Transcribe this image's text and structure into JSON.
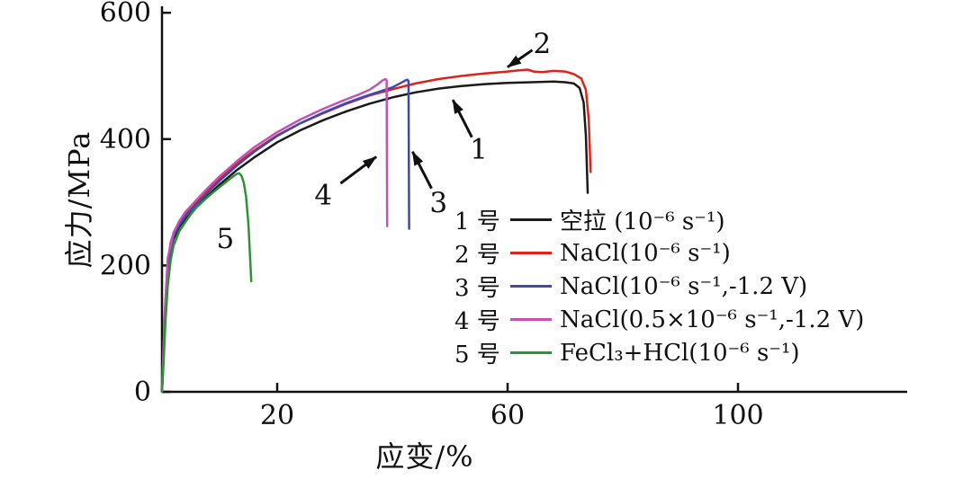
{
  "figure": {
    "background": "#ffffff",
    "axis_color": "#111111"
  },
  "chart_data": {
    "type": "line",
    "title": "",
    "xlabel": "应变/%",
    "ylabel": "应力/MPa",
    "xlim": [
      0,
      129
    ],
    "ylim": [
      0,
      620
    ],
    "xticks": [
      20,
      60,
      100
    ],
    "yticks": [
      0,
      200,
      400,
      600
    ],
    "grid": false,
    "legend_position": "inside-lower-right",
    "series": [
      {
        "id": "1",
        "legend_key": "1 号",
        "name": "空拉 (10⁻⁶ s⁻¹)",
        "color": "#1a1a1a",
        "points": [
          [
            0,
            0
          ],
          [
            0.3,
            60
          ],
          [
            0.6,
            130
          ],
          [
            1,
            198
          ],
          [
            1.5,
            226
          ],
          [
            2,
            242
          ],
          [
            3,
            261
          ],
          [
            4,
            273
          ],
          [
            6,
            293
          ],
          [
            8,
            311
          ],
          [
            10,
            328
          ],
          [
            13,
            351
          ],
          [
            16,
            371
          ],
          [
            20,
            395
          ],
          [
            24,
            414
          ],
          [
            28,
            430
          ],
          [
            32,
            444
          ],
          [
            36,
            456
          ],
          [
            40,
            466
          ],
          [
            44,
            474
          ],
          [
            48,
            480
          ],
          [
            52,
            484
          ],
          [
            56,
            487
          ],
          [
            60,
            489
          ],
          [
            64,
            490
          ],
          [
            68,
            491
          ],
          [
            70,
            490
          ],
          [
            71.5,
            488
          ],
          [
            72.5,
            481
          ],
          [
            73.2,
            458
          ],
          [
            73.6,
            405
          ],
          [
            73.9,
            315
          ]
        ]
      },
      {
        "id": "2",
        "legend_key": "2 号",
        "name": "NaCl(10⁻⁶ s⁻¹)",
        "color": "#e02318",
        "points": [
          [
            0,
            0
          ],
          [
            0.3,
            70
          ],
          [
            0.6,
            140
          ],
          [
            1,
            206
          ],
          [
            1.5,
            236
          ],
          [
            2,
            251
          ],
          [
            3,
            269
          ],
          [
            4,
            281
          ],
          [
            6,
            301
          ],
          [
            8,
            319
          ],
          [
            10,
            337
          ],
          [
            13,
            361
          ],
          [
            16,
            382
          ],
          [
            20,
            406
          ],
          [
            24,
            425
          ],
          [
            28,
            441
          ],
          [
            32,
            456
          ],
          [
            36,
            469
          ],
          [
            40,
            479
          ],
          [
            44,
            488
          ],
          [
            48,
            495
          ],
          [
            52,
            500
          ],
          [
            56,
            504
          ],
          [
            60,
            507
          ],
          [
            62,
            509
          ],
          [
            63.5,
            510
          ],
          [
            64.5,
            507
          ],
          [
            66,
            506
          ],
          [
            68,
            508
          ],
          [
            70,
            507
          ],
          [
            71.5,
            503
          ],
          [
            72.8,
            496
          ],
          [
            73.6,
            478
          ],
          [
            74.1,
            430
          ],
          [
            74.4,
            348
          ]
        ]
      },
      {
        "id": "3",
        "legend_key": "3 号",
        "name": "NaCl(10⁻⁶ s⁻¹,-1.2 V)",
        "color": "#4149ae",
        "points": [
          [
            0,
            0
          ],
          [
            0.5,
            115
          ],
          [
            1,
            200
          ],
          [
            2,
            246
          ],
          [
            3,
            264
          ],
          [
            4,
            277
          ],
          [
            6,
            297
          ],
          [
            8,
            316
          ],
          [
            10,
            334
          ],
          [
            13,
            358
          ],
          [
            16,
            380
          ],
          [
            20,
            405
          ],
          [
            24,
            425
          ],
          [
            28,
            442
          ],
          [
            32,
            457
          ],
          [
            35,
            467
          ],
          [
            38,
            476
          ],
          [
            40,
            482
          ],
          [
            41.5,
            489
          ],
          [
            42.3,
            493
          ],
          [
            42.6,
            494
          ],
          [
            42.8,
            492
          ],
          [
            42.9,
            258
          ]
        ]
      },
      {
        "id": "4",
        "legend_key": "4 号",
        "name": "NaCl(0.5×10⁻⁶ s⁻¹,-1.2 V)",
        "color": "#c153b5",
        "points": [
          [
            0,
            0
          ],
          [
            0.5,
            130
          ],
          [
            1,
            212
          ],
          [
            2,
            252
          ],
          [
            3,
            270
          ],
          [
            4,
            284
          ],
          [
            6,
            304
          ],
          [
            8,
            323
          ],
          [
            10,
            341
          ],
          [
            13,
            365
          ],
          [
            16,
            387
          ],
          [
            20,
            411
          ],
          [
            24,
            431
          ],
          [
            28,
            448
          ],
          [
            32,
            463
          ],
          [
            34,
            470
          ],
          [
            36,
            478
          ],
          [
            37.5,
            487
          ],
          [
            38.3,
            493
          ],
          [
            38.8,
            495
          ],
          [
            39,
            493
          ],
          [
            39.1,
            262
          ]
        ]
      },
      {
        "id": "5",
        "legend_key": "5 号",
        "name": "FeCl₃+HCl(10⁻⁶ s⁻¹)",
        "color": "#2e9237",
        "points": [
          [
            0,
            0
          ],
          [
            0.3,
            50
          ],
          [
            0.6,
            110
          ],
          [
            1,
            168
          ],
          [
            1.5,
            208
          ],
          [
            2,
            231
          ],
          [
            3,
            254
          ],
          [
            4,
            268
          ],
          [
            5,
            281
          ],
          [
            6,
            292
          ],
          [
            8,
            309
          ],
          [
            10,
            324
          ],
          [
            11.5,
            335
          ],
          [
            12.5,
            342
          ],
          [
            13,
            345
          ],
          [
            13.4,
            346
          ],
          [
            13.8,
            342
          ],
          [
            14.2,
            331
          ],
          [
            14.6,
            309
          ],
          [
            15,
            266
          ],
          [
            15.3,
            212
          ],
          [
            15.5,
            175
          ]
        ]
      }
    ],
    "annotations": [
      {
        "text": "2",
        "tx": 66.0,
        "ty": 552,
        "arrow": {
          "x1": 64.3,
          "y1": 541,
          "x2": 60.0,
          "y2": 514
        }
      },
      {
        "text": "1",
        "tx": 55.0,
        "ty": 385,
        "arrow": {
          "x1": 53.8,
          "y1": 403,
          "x2": 50.5,
          "y2": 462
        }
      },
      {
        "text": "4",
        "tx": 28.0,
        "ty": 312,
        "arrow": {
          "x1": 31.0,
          "y1": 330,
          "x2": 37.2,
          "y2": 372
        }
      },
      {
        "text": "3",
        "tx": 48.0,
        "ty": 300,
        "arrow": {
          "x1": 46.8,
          "y1": 322,
          "x2": 43.5,
          "y2": 380
        }
      },
      {
        "text": "5",
        "tx": 11.0,
        "ty": 243,
        "arrow": null
      }
    ]
  }
}
